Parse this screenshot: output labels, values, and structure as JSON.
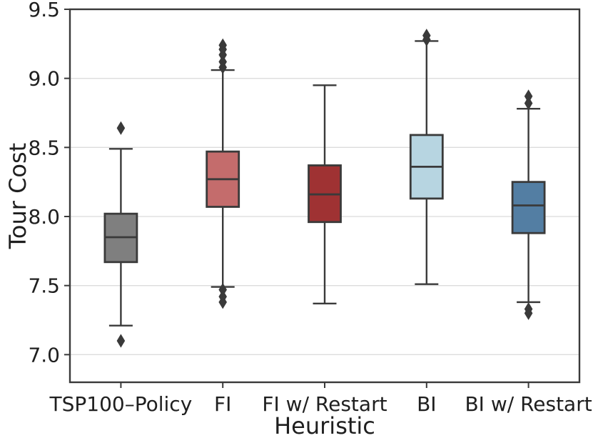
{
  "figure": {
    "background": "#ffffff",
    "plot_background": "#ffffff"
  },
  "chart_data": {
    "type": "boxplot",
    "title": "",
    "xlabel": "Heuristic",
    "ylabel": "Tour Cost",
    "ylim": [
      6.8,
      9.5
    ],
    "yticks": [
      7.0,
      7.5,
      8.0,
      8.5,
      9.0,
      9.5
    ],
    "ytick_labels": [
      "7.0",
      "7.5",
      "8.0",
      "8.5",
      "9.0",
      "9.5"
    ],
    "grid": "horizontal-gridlines-on",
    "legend": "none",
    "categories": [
      "TSP100–Policy",
      "FI",
      "FI w/ Restart",
      "BI",
      "BI w/ Restart"
    ],
    "boxes": [
      {
        "label": "TSP100–Policy",
        "color": "#7f7f7f",
        "whisker_low": 7.21,
        "q1": 7.67,
        "median": 7.85,
        "q3": 8.02,
        "whisker_high": 8.49,
        "outliers": [
          8.64,
          7.1
        ]
      },
      {
        "label": "FI",
        "color": "#c46c6c",
        "whisker_low": 7.49,
        "q1": 8.07,
        "median": 8.27,
        "q3": 8.47,
        "whisker_high": 9.06,
        "outliers": [
          9.24,
          9.21,
          9.17,
          9.12,
          9.08,
          7.47,
          7.42,
          7.38
        ]
      },
      {
        "label": "FI w/ Restart",
        "color": "#9f3233",
        "whisker_low": 7.37,
        "q1": 7.96,
        "median": 8.16,
        "q3": 8.37,
        "whisker_high": 8.95,
        "outliers": []
      },
      {
        "label": "BI",
        "color": "#b7d5e1",
        "whisker_low": 7.51,
        "q1": 8.13,
        "median": 8.36,
        "q3": 8.59,
        "whisker_high": 9.27,
        "outliers": [
          9.31,
          9.28
        ]
      },
      {
        "label": "BI w/ Restart",
        "color": "#537ea3",
        "whisker_low": 7.38,
        "q1": 7.88,
        "median": 8.08,
        "q3": 8.25,
        "whisker_high": 8.78,
        "outliers": [
          8.87,
          8.82,
          7.33,
          7.3
        ]
      }
    ],
    "style_colors": {
      "line_color": "#3a3a3a",
      "grid_color": "#dcdcdc",
      "text_color": "#1f1f1f",
      "flier_color": "#3a3a3a"
    }
  }
}
